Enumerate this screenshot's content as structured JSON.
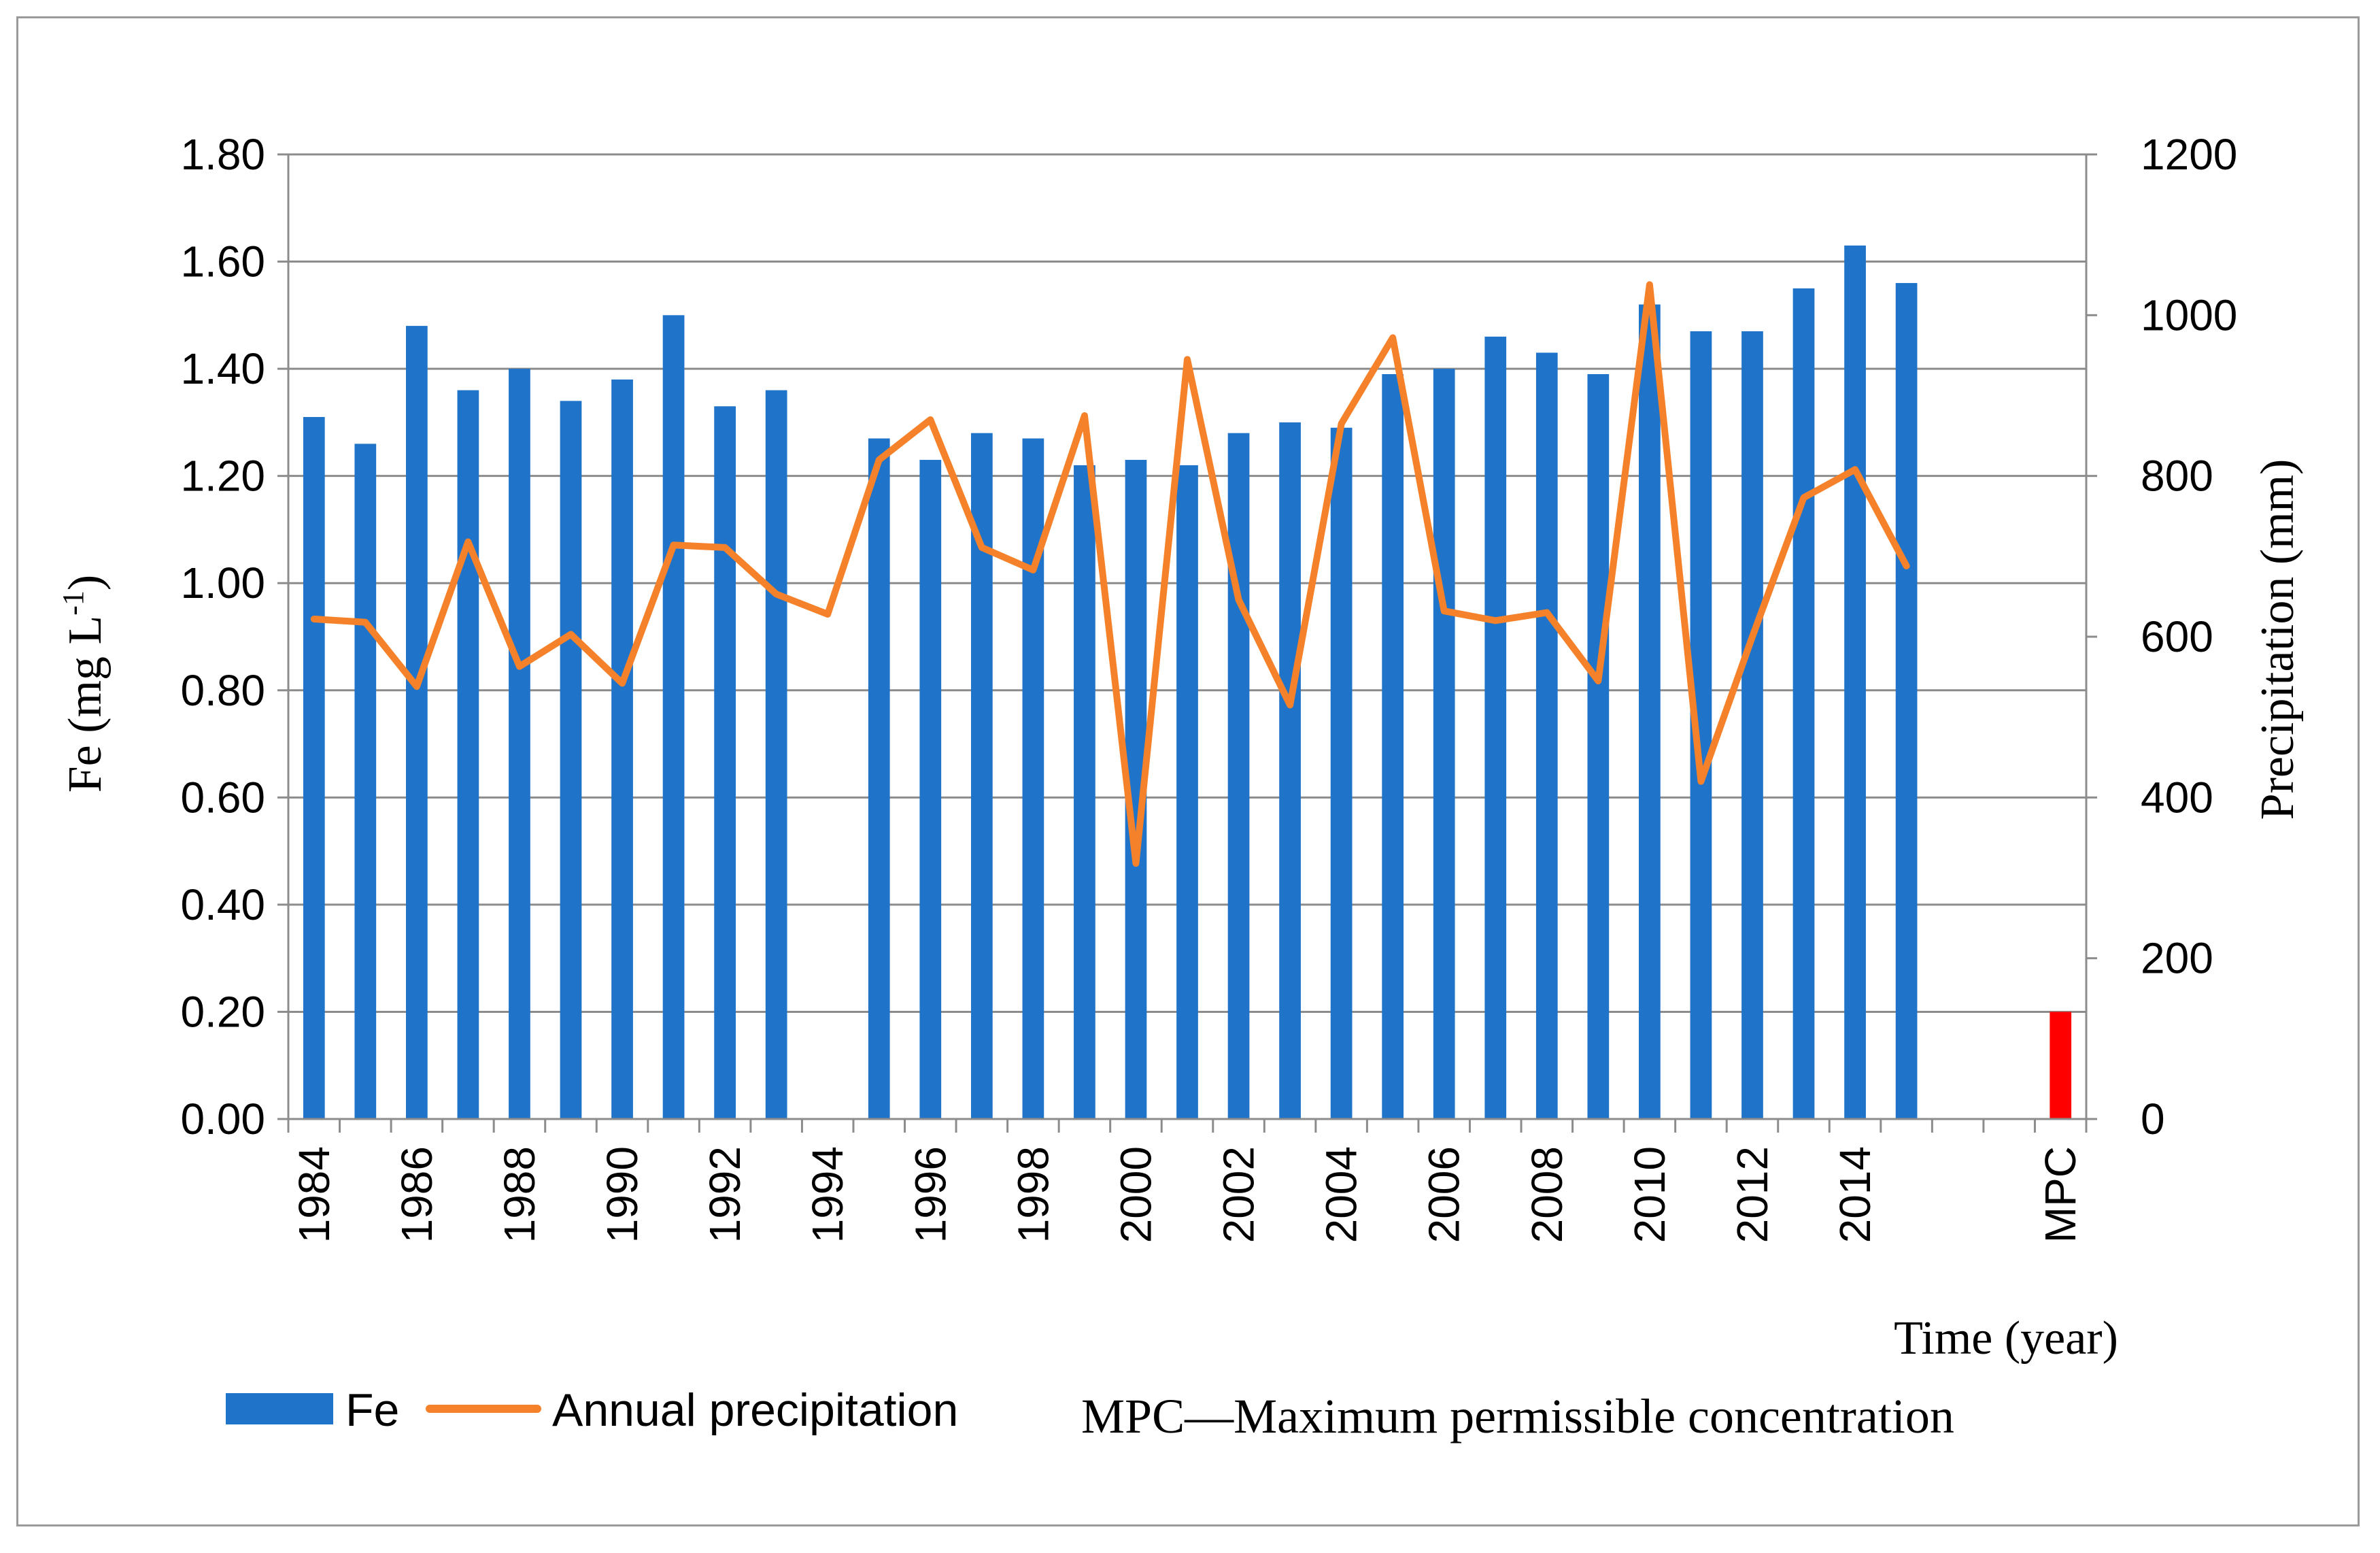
{
  "chart_data": {
    "type": "bar",
    "categories": [
      "1984",
      "1985",
      "1986",
      "1987",
      "1988",
      "1989",
      "1990",
      "1991",
      "1992",
      "1993",
      "1994",
      "1995",
      "1996",
      "1997",
      "1998",
      "1999",
      "2000",
      "2001",
      "2002",
      "2003",
      "2004",
      "2005",
      "2006",
      "2007",
      "2008",
      "2009",
      "2010",
      "2011",
      "2012",
      "2013",
      "2014",
      "2015",
      "",
      "",
      "MPC"
    ],
    "tick_labels": [
      "1984",
      "1986",
      "1988",
      "1990",
      "1992",
      "1994",
      "1996",
      "1998",
      "2000",
      "2002",
      "2004",
      "2006",
      "2008",
      "2010",
      "2012",
      "2014",
      "MPC"
    ],
    "series": [
      {
        "name": "Fe",
        "type": "bar",
        "axis": "left",
        "color": "#1f74c9",
        "values": [
          1.31,
          1.26,
          1.48,
          1.36,
          1.4,
          1.34,
          1.38,
          1.5,
          1.33,
          1.36,
          null,
          1.27,
          1.23,
          1.28,
          1.27,
          1.22,
          1.23,
          1.22,
          1.28,
          1.3,
          1.29,
          1.39,
          1.4,
          1.46,
          1.43,
          1.39,
          1.52,
          1.47,
          1.47,
          1.55,
          1.63,
          1.56,
          null,
          null,
          null
        ]
      },
      {
        "name": "MPC",
        "type": "bar",
        "axis": "left",
        "color": "#ff0000",
        "values": [
          null,
          null,
          null,
          null,
          null,
          null,
          null,
          null,
          null,
          null,
          null,
          null,
          null,
          null,
          null,
          null,
          null,
          null,
          null,
          null,
          null,
          null,
          null,
          null,
          null,
          null,
          null,
          null,
          null,
          null,
          null,
          null,
          null,
          null,
          0.2
        ]
      },
      {
        "name": "Annual precipitation",
        "type": "line",
        "axis": "right",
        "color": "#f5822a",
        "values": [
          622,
          618,
          538,
          718,
          563,
          603,
          542,
          714,
          711,
          653,
          628,
          820,
          870,
          711,
          683,
          875,
          318,
          945,
          646,
          515,
          865,
          972,
          632,
          620,
          630,
          545,
          1038,
          420,
          600,
          773,
          808,
          688,
          null,
          null,
          null
        ]
      }
    ],
    "left_axis": {
      "label_prefix": "Fe (mg L",
      "label_sup": "-1",
      "label_suffix": ")",
      "range": [
        0,
        1.8
      ],
      "ticks": [
        "0.00",
        "0.20",
        "0.40",
        "0.60",
        "0.80",
        "1.00",
        "1.20",
        "1.40",
        "1.60",
        "1.80"
      ]
    },
    "right_axis": {
      "label": "Precipitation (mm)",
      "range": [
        0,
        1200
      ],
      "ticks": [
        "0",
        "200",
        "400",
        "600",
        "800",
        "1000",
        "1200"
      ]
    },
    "xlabel": "Time (year)",
    "grid": true,
    "legend": {
      "position": "bottom",
      "items": [
        "Fe",
        "Annual precipitation"
      ]
    },
    "note": "MPC—Maximum permissible concentration"
  }
}
